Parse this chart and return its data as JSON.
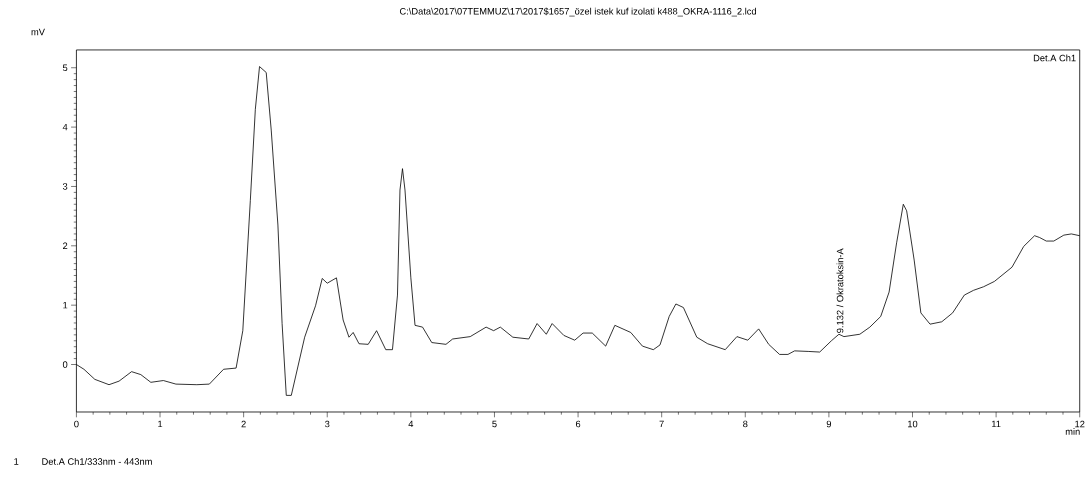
{
  "chart_data": {
    "type": "line",
    "title": "C:\\Data\\2017\\07TEMMUZ\\17\\2017$1657_özel istek kuf izolati k488_OKRA-1116_2.lcd",
    "xlabel": "min",
    "ylabel": "mV",
    "annotations": [
      "Det.A Ch1",
      {
        "text": "9.132 / Okratoksin-A",
        "x": 9.132,
        "y": 0.5
      },
      "1",
      "Det.A Ch1/333nm - 443nm"
    ],
    "xlim": [
      0,
      12
    ],
    "ylim": [
      -0.8,
      5.3
    ],
    "xticks": [
      0,
      1,
      2,
      3,
      4,
      5,
      6,
      7,
      8,
      9,
      10,
      11,
      12
    ],
    "yticks": [
      0,
      1,
      2,
      3,
      4,
      5
    ],
    "series": [
      {
        "color": "#000000",
        "x": [
          0,
          0.09,
          0.22,
          0.39,
          0.51,
          0.66,
          0.77,
          0.89,
          1.04,
          1.19,
          1.44,
          1.59,
          1.76,
          1.91,
          1.99,
          2.08,
          2.14,
          2.19,
          2.27,
          2.33,
          2.41,
          2.46,
          2.51,
          2.57,
          2.73,
          2.86,
          2.94,
          3.0,
          3.11,
          3.19,
          3.26,
          3.31,
          3.38,
          3.49,
          3.59,
          3.7,
          3.78,
          3.84,
          3.87,
          3.9,
          3.93,
          4.0,
          4.05,
          4.14,
          4.25,
          4.42,
          4.5,
          4.71,
          4.9,
          4.99,
          5.07,
          5.22,
          5.41,
          5.51,
          5.62,
          5.69,
          5.83,
          5.96,
          6.06,
          6.17,
          6.33,
          6.44,
          6.63,
          6.77,
          6.9,
          6.98,
          7.09,
          7.17,
          7.26,
          7.42,
          7.55,
          7.76,
          7.9,
          8.03,
          8.16,
          8.28,
          8.41,
          8.51,
          8.59,
          8.76,
          8.89,
          9.03,
          9.12,
          9.18,
          9.37,
          9.49,
          9.62,
          9.72,
          9.81,
          9.89,
          9.93,
          10.02,
          10.1,
          10.21,
          10.35,
          10.48,
          10.62,
          10.73,
          10.85,
          10.98,
          11.19,
          11.33,
          11.46,
          11.52,
          11.6,
          11.69,
          11.81,
          11.9,
          12.0
        ],
        "values": [
          0,
          -0.08,
          -0.25,
          -0.34,
          -0.28,
          -0.12,
          -0.17,
          -0.3,
          -0.27,
          -0.33,
          -0.34,
          -0.33,
          -0.08,
          -0.06,
          0.57,
          2.76,
          4.3,
          5.02,
          4.92,
          3.95,
          2.35,
          0.69,
          -0.52,
          -0.52,
          0.46,
          0.99,
          1.45,
          1.37,
          1.46,
          0.75,
          0.46,
          0.54,
          0.35,
          0.34,
          0.57,
          0.25,
          0.25,
          1.17,
          2.94,
          3.3,
          2.94,
          1.46,
          0.66,
          0.63,
          0.37,
          0.34,
          0.43,
          0.47,
          0.63,
          0.57,
          0.63,
          0.46,
          0.43,
          0.69,
          0.51,
          0.69,
          0.49,
          0.41,
          0.53,
          0.53,
          0.31,
          0.66,
          0.54,
          0.31,
          0.25,
          0.33,
          0.81,
          1.02,
          0.96,
          0.46,
          0.35,
          0.25,
          0.47,
          0.41,
          0.6,
          0.34,
          0.17,
          0.17,
          0.23,
          0.22,
          0.21,
          0.4,
          0.51,
          0.47,
          0.51,
          0.63,
          0.81,
          1.22,
          2.05,
          2.7,
          2.59,
          1.76,
          0.87,
          0.68,
          0.72,
          0.87,
          1.17,
          1.25,
          1.31,
          1.4,
          1.64,
          1.99,
          2.17,
          2.14,
          2.08,
          2.08,
          2.18,
          2.2,
          2.17
        ]
      }
    ]
  }
}
